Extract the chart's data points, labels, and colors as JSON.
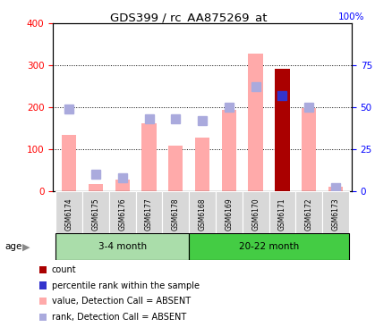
{
  "title": "GDS399 / rc_AA875269_at",
  "samples": [
    "GSM6174",
    "GSM6175",
    "GSM6176",
    "GSM6177",
    "GSM6178",
    "GSM6168",
    "GSM6169",
    "GSM6170",
    "GSM6171",
    "GSM6172",
    "GSM6173"
  ],
  "value_absent": [
    133,
    18,
    28,
    162,
    108,
    128,
    193,
    328,
    0,
    197,
    10
  ],
  "rank_absent_pct": [
    49,
    10,
    8,
    43,
    43,
    42,
    50,
    62,
    0,
    50,
    2
  ],
  "count_value": [
    0,
    0,
    0,
    0,
    0,
    0,
    0,
    0,
    291,
    0,
    0
  ],
  "rank_present_pct": [
    0,
    0,
    0,
    0,
    0,
    0,
    0,
    0,
    57,
    0,
    0
  ],
  "ylim_left": [
    0,
    400
  ],
  "ylim_right": [
    0,
    100
  ],
  "yticks_left": [
    0,
    100,
    200,
    300,
    400
  ],
  "yticks_right": [
    0,
    25,
    50,
    75
  ],
  "color_value_absent": "#ffaaaa",
  "color_rank_absent": "#aaaadd",
  "color_count": "#aa0000",
  "color_rank_present": "#3333cc",
  "bg_group1": "#aaddaa",
  "bg_group2": "#44cc44",
  "bar_width": 0.55,
  "marker_size": 7
}
